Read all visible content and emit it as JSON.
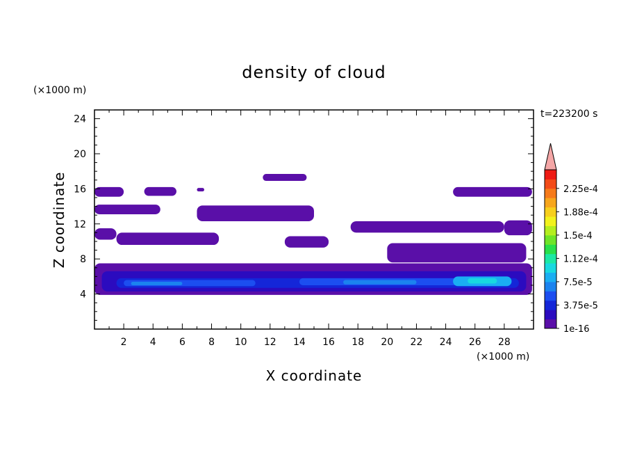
{
  "chart_data": {
    "type": "contour",
    "title": "density of cloud",
    "xlabel": "X coordinate",
    "ylabel": "Z coordinate",
    "x_unit": "(×1000 m)",
    "y_unit": "(×1000 m)",
    "time_label": "t=223200 s",
    "xlim": [
      0,
      30
    ],
    "ylim": [
      0,
      25
    ],
    "x_ticks": [
      2,
      4,
      6,
      8,
      10,
      12,
      14,
      16,
      18,
      20,
      22,
      24,
      26,
      28
    ],
    "y_ticks": [
      4,
      8,
      12,
      16,
      20,
      24
    ],
    "colorbar": {
      "labels": [
        "1e-16",
        "3.75e-5",
        "7.5e-5",
        "1.12e-4",
        "1.5e-4",
        "1.88e-4",
        "2.25e-4"
      ],
      "colors": [
        "#5a0fa8",
        "#2b0bbf",
        "#1426d8",
        "#1c4ef0",
        "#1b83ef",
        "#1aaef2",
        "#18d8e0",
        "#1be8a4",
        "#28e04a",
        "#6fe428",
        "#b4ee1f",
        "#f2f21c",
        "#f7cf1c",
        "#f7a61c",
        "#f67a1a",
        "#f34b18",
        "#ee1a14"
      ],
      "extend_color": "#f4a6a6"
    },
    "regions": [
      {
        "level": 1,
        "x": [
          0,
          2
        ],
        "z": [
          15.1,
          16.2
        ]
      },
      {
        "level": 1,
        "x": [
          3.4,
          5.6
        ],
        "z": [
          15.2,
          16.2
        ]
      },
      {
        "level": 1,
        "x": [
          7.0,
          7.5
        ],
        "z": [
          15.7,
          16.1
        ]
      },
      {
        "level": 1,
        "x": [
          11.5,
          14.5
        ],
        "z": [
          16.9,
          17.7
        ]
      },
      {
        "level": 1,
        "x": [
          0,
          4.5
        ],
        "z": [
          13.1,
          14.2
        ]
      },
      {
        "level": 1,
        "x": [
          7,
          15
        ],
        "z": [
          12.3,
          14.1
        ]
      },
      {
        "level": 1,
        "x": [
          0,
          1.5
        ],
        "z": [
          10.2,
          11.5
        ]
      },
      {
        "level": 1,
        "x": [
          1.5,
          8.5
        ],
        "z": [
          9.6,
          11.0
        ]
      },
      {
        "level": 1,
        "x": [
          13,
          16
        ],
        "z": [
          9.3,
          10.6
        ]
      },
      {
        "level": 1,
        "x": [
          17.5,
          28
        ],
        "z": [
          11.0,
          12.3
        ]
      },
      {
        "level": 1,
        "x": [
          24.5,
          29.9
        ],
        "z": [
          15.1,
          16.2
        ]
      },
      {
        "level": 1,
        "x": [
          28,
          29.9
        ],
        "z": [
          10.7,
          12.4
        ]
      },
      {
        "level": 1,
        "x": [
          20,
          29.5
        ],
        "z": [
          7.6,
          9.8
        ]
      },
      {
        "level": 1,
        "x": [
          0,
          29.9
        ],
        "z": [
          3.9,
          7.5
        ]
      },
      {
        "level": 2,
        "x": [
          0.5,
          29.5
        ],
        "z": [
          4.3,
          6.6
        ]
      },
      {
        "level": 3,
        "x": [
          1.5,
          29
        ],
        "z": [
          4.7,
          5.8
        ]
      },
      {
        "level": 4,
        "x": [
          2,
          11
        ],
        "z": [
          4.9,
          5.6
        ]
      },
      {
        "level": 4,
        "x": [
          14,
          28.5
        ],
        "z": [
          5.0,
          5.8
        ]
      },
      {
        "level": 5,
        "x": [
          2.5,
          6
        ],
        "z": [
          5.0,
          5.4
        ]
      },
      {
        "level": 5,
        "x": [
          17,
          22
        ],
        "z": [
          5.1,
          5.6
        ]
      },
      {
        "level": 6,
        "x": [
          24.5,
          28.5
        ],
        "z": [
          4.9,
          6.0
        ]
      },
      {
        "level": 7,
        "x": [
          25.5,
          27.5
        ],
        "z": [
          5.2,
          5.8
        ]
      }
    ]
  }
}
